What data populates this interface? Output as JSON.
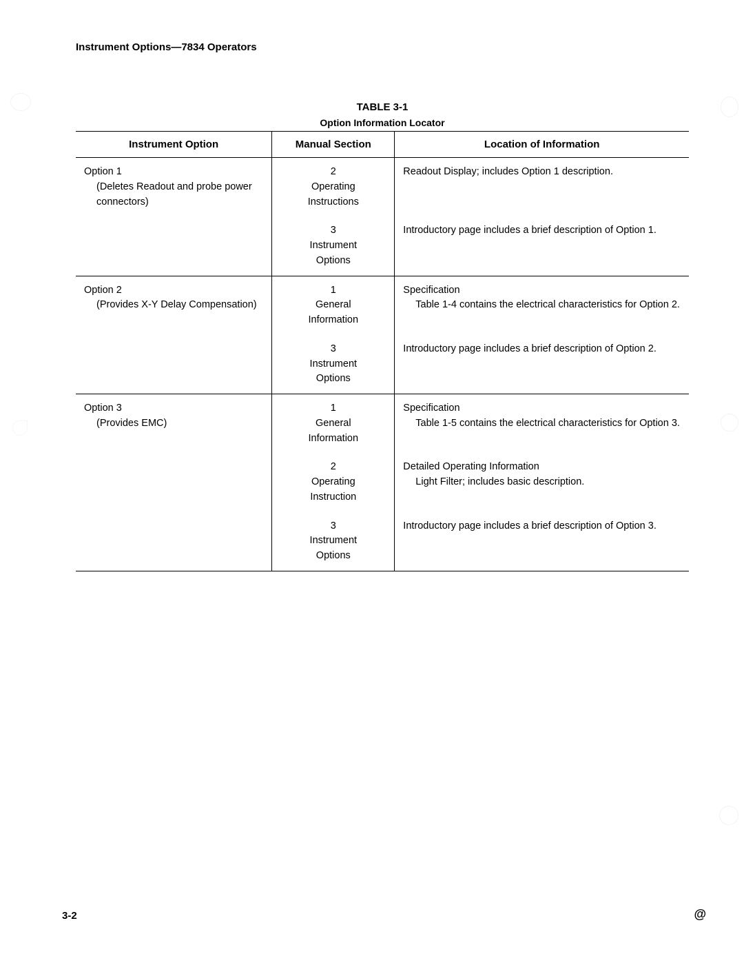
{
  "header": {
    "text": "Instrument Options—7834 Operators"
  },
  "table": {
    "title": "TABLE 3-1",
    "subtitle": "Option Information Locator",
    "columns": [
      "Instrument Option",
      "Manual Section",
      "Location of Information"
    ],
    "col_widths_pct": [
      32,
      20,
      48
    ],
    "border_color": "#000000",
    "font_size": 14.5,
    "header_font_size": 15,
    "rows": [
      {
        "group_start": true,
        "option_label": "Option 1",
        "option_sub": "(Deletes Readout and probe power connectors)",
        "section_num": "2",
        "section_name1": "Operating",
        "section_name2": "Instructions",
        "location_primary": "Readout Display; includes Option 1 description."
      },
      {
        "section_num": "3",
        "section_name1": "Instrument",
        "section_name2": "Options",
        "location_primary": "Introductory page includes a brief description of Option 1."
      },
      {
        "group_start": true,
        "option_label": "Option 2",
        "option_sub": "(Provides X-Y Delay Compensation)",
        "section_num": "1",
        "section_name1": "General",
        "section_name2": "Information",
        "location_primary": "Specification",
        "location_sub": "Table 1-4 contains the electrical characteristics for Option 2."
      },
      {
        "section_num": "3",
        "section_name1": "Instrument",
        "section_name2": "Options",
        "location_primary": "Introductory page includes a brief description of Option 2."
      },
      {
        "group_start": true,
        "option_label": "Option 3",
        "option_sub": "(Provides EMC)",
        "section_num": "1",
        "section_name1": "General",
        "section_name2": "Information",
        "location_primary": "Specification",
        "location_sub": "Table 1-5 contains the electrical characteristics for Option 3."
      },
      {
        "section_num": "2",
        "section_name1": "Operating",
        "section_name2": "Instruction",
        "location_primary": "Detailed Operating Information",
        "location_sub": "Light Filter; includes basic description."
      },
      {
        "last": true,
        "section_num": "3",
        "section_name1": "Instrument",
        "section_name2": "Options",
        "location_primary": "Introductory page includes a brief description of Option 3."
      }
    ]
  },
  "footer": {
    "page_number": "3-2",
    "mark": "@"
  },
  "colors": {
    "background": "#ffffff",
    "text": "#000000",
    "border": "#000000"
  }
}
